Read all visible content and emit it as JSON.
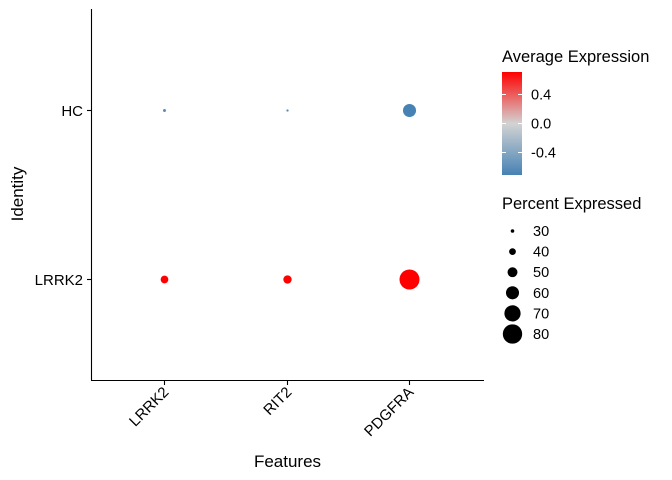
{
  "chart_data": {
    "type": "dot",
    "xlabel": "Features",
    "ylabel": "Identity",
    "features": [
      "LRRK2",
      "RIT2",
      "PDGFRA"
    ],
    "identities": [
      "HC",
      "LRRK2"
    ],
    "points": [
      {
        "identity": "HC",
        "feature": "LRRK2",
        "avg_exp": -0.62,
        "pct": 28
      },
      {
        "identity": "HC",
        "feature": "RIT2",
        "avg_exp": -0.62,
        "pct": 26
      },
      {
        "identity": "HC",
        "feature": "PDGFRA",
        "avg_exp": -0.71,
        "pct": 60
      },
      {
        "identity": "LRRK2",
        "feature": "LRRK2",
        "avg_exp": 0.71,
        "pct": 43
      },
      {
        "identity": "LRRK2",
        "feature": "RIT2",
        "avg_exp": 0.71,
        "pct": 45
      },
      {
        "identity": "LRRK2",
        "feature": "PDGFRA",
        "avg_exp": 0.71,
        "pct": 82
      }
    ],
    "color_legend": {
      "title": "Average Expression",
      "ticks": [
        0.4,
        0.0,
        -0.4
      ],
      "tick_labels": [
        "0.4",
        "0.0",
        "-0.4"
      ],
      "range": [
        -0.71,
        0.71
      ],
      "low_color": "#4682b4",
      "mid_color": "#d3d3d3",
      "high_color": "#ff0000"
    },
    "size_legend": {
      "title": "Percent Expressed",
      "values": [
        30,
        40,
        50,
        60,
        70,
        80
      ],
      "labels": [
        "30",
        "40",
        "50",
        "60",
        "70",
        "80"
      ]
    },
    "grid": false
  }
}
